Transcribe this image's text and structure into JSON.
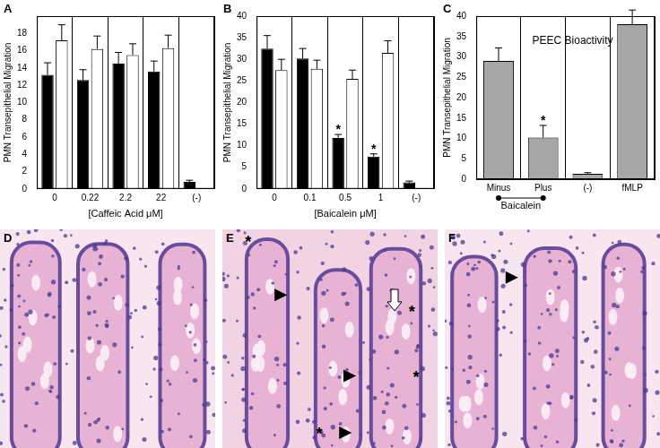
{
  "chart_data": [
    {
      "panel": "A",
      "type": "bar",
      "x_label": "[Caffeic Acid μM]",
      "y_label": "PMN Transepithelial Migration",
      "categories": [
        "0",
        "0.22",
        "2.2",
        "22",
        "(-)"
      ],
      "series": [
        {
          "color": "#000000",
          "values": [
            13.2,
            12.6,
            14.5,
            13.6,
            0.8
          ],
          "errors": [
            1.4,
            1.2,
            1.3,
            1.2,
            0.2
          ]
        },
        {
          "color": "#ffffff",
          "values": [
            17.2,
            16.2,
            15.5,
            16.3,
            null
          ],
          "errors": [
            1.8,
            1.5,
            1.3,
            1.5,
            null
          ]
        }
      ],
      "ylim": [
        0,
        20
      ],
      "yticks": [
        0,
        2,
        4,
        6,
        8,
        10,
        12,
        14,
        16,
        18
      ]
    },
    {
      "panel": "B",
      "type": "bar",
      "x_label": "[Baicalein μM]",
      "y_label": "PMN Transepithelial Migration",
      "categories": [
        "0",
        "0.1",
        "0.5",
        "1",
        "(-)"
      ],
      "series": [
        {
          "color": "#000000",
          "values": [
            32.5,
            30.2,
            11.8,
            7.5,
            1.5
          ],
          "errors": [
            3,
            2.3,
            0.8,
            0.6,
            0.3
          ]
        },
        {
          "color": "#ffffff",
          "values": [
            27.5,
            27.8,
            25.5,
            31.5,
            null
          ],
          "errors": [
            2.5,
            2,
            2,
            2.8,
            null
          ]
        }
      ],
      "annotations": [
        {
          "category": "0.5",
          "series": 0,
          "text": "*"
        },
        {
          "category": "1",
          "series": 0,
          "text": "*"
        }
      ],
      "ylim": [
        0,
        40
      ],
      "yticks": [
        0,
        5,
        10,
        15,
        20,
        25,
        30,
        35,
        40
      ]
    },
    {
      "panel": "C",
      "type": "bar",
      "title": "PEEC Bioactivity",
      "y_label": "PMN Transepithelial Migration",
      "categories": [
        "Minus",
        "Plus",
        "(-)",
        "fMLP"
      ],
      "series": [
        {
          "color": "#a6a6a6",
          "values": [
            29,
            10.2,
            1.3,
            38
          ],
          "errors": [
            3.2,
            3,
            0.3,
            3.5
          ]
        }
      ],
      "group_label": {
        "text": "Baicalein",
        "categories": [
          "Minus",
          "Plus"
        ]
      },
      "annotations": [
        {
          "category": "Plus",
          "series": 0,
          "text": "*"
        }
      ],
      "ylim": [
        0,
        40
      ],
      "yticks": [
        0,
        5,
        10,
        15,
        20,
        25,
        30,
        35,
        40
      ]
    }
  ],
  "images": [
    {
      "panel": "D",
      "annotations": []
    },
    {
      "panel": "E",
      "annotations": [
        "*",
        "*",
        "*",
        "*"
      ]
    },
    {
      "panel": "F",
      "annotations": []
    }
  ]
}
